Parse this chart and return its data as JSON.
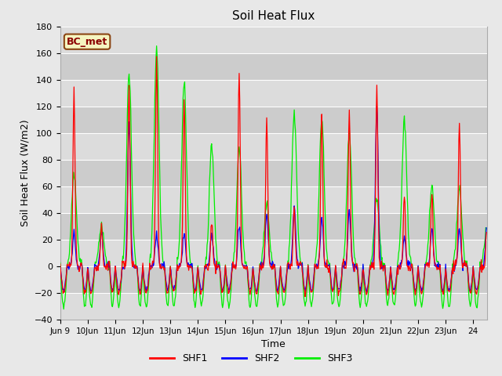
{
  "title": "Soil Heat Flux",
  "ylabel": "Soil Heat Flux (W/m2)",
  "xlabel": "Time",
  "annotation_text": "BC_met",
  "ylim": [
    -40,
    180
  ],
  "yticks": [
    -40,
    -20,
    0,
    20,
    40,
    60,
    80,
    100,
    120,
    140,
    160,
    180
  ],
  "fig_bg_color": "#e8e8e8",
  "plot_bg_color": "#dcdcdc",
  "grid_color": "#ffffff",
  "line_colors": [
    "red",
    "blue",
    "#00ee00"
  ],
  "legend_labels": [
    "SHF1",
    "SHF2",
    "SHF3"
  ],
  "xtick_labels": [
    "Jun 9",
    "Jun",
    "10Jun",
    "11Jun",
    "12Jun",
    "13Jun",
    "14Jun",
    "15Jun",
    "16Jun",
    "17Jun",
    "18Jun",
    "19Jun",
    "20Jun",
    "21Jun",
    "22Jun",
    "23Jun",
    "24"
  ],
  "xlim": [
    0,
    15.5
  ],
  "days": 15,
  "band_colors": [
    "#dcdcdc",
    "#cccccc"
  ]
}
